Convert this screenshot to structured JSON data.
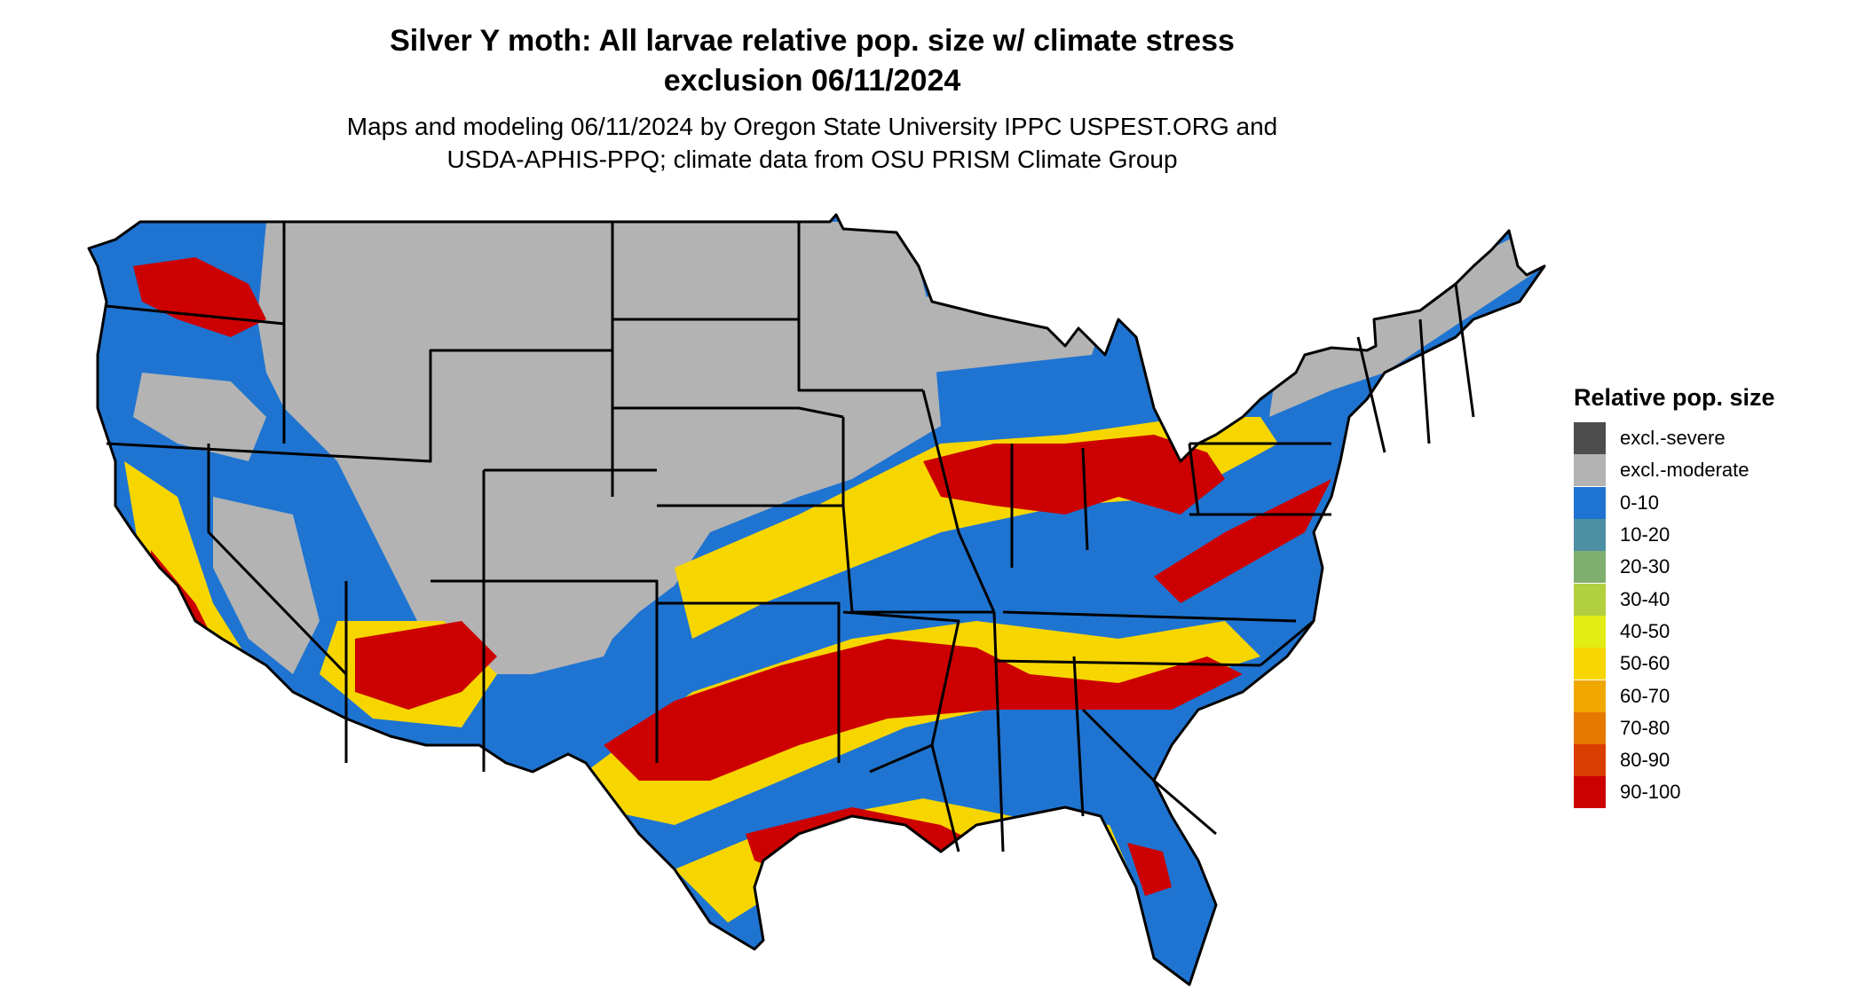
{
  "title_line1": "Silver Y moth: All larvae relative pop. size w/ climate stress",
  "title_line2": "exclusion 06/11/2024",
  "subtitle_line1": "Maps and modeling 06/11/2024 by Oregon State University IPPC USPEST.ORG and",
  "subtitle_line2": "USDA-APHIS-PPQ; climate data from OSU PRISM Climate Group",
  "legend": {
    "title": "Relative pop. size",
    "items": [
      {
        "label": "excl.-severe",
        "color": "#4d4d4d"
      },
      {
        "label": "excl.-moderate",
        "color": "#b3b3b3"
      },
      {
        "label": "0-10",
        "color": "#1f74d1"
      },
      {
        "label": "10-20",
        "color": "#4d8fa3"
      },
      {
        "label": "20-30",
        "color": "#7fae6e"
      },
      {
        "label": "30-40",
        "color": "#b2cf3f"
      },
      {
        "label": "40-50",
        "color": "#e3ec14"
      },
      {
        "label": "50-60",
        "color": "#f7d600"
      },
      {
        "label": "60-70",
        "color": "#f0a800"
      },
      {
        "label": "70-80",
        "color": "#e67a00"
      },
      {
        "label": "80-90",
        "color": "#d93d00"
      },
      {
        "label": "90-100",
        "color": "#cc0000"
      }
    ]
  },
  "map_colors": {
    "excluded": "#b3b3b3",
    "low": "#1f74d1",
    "mid": "#f7d600",
    "high": "#cc0000",
    "border": "#000000"
  }
}
